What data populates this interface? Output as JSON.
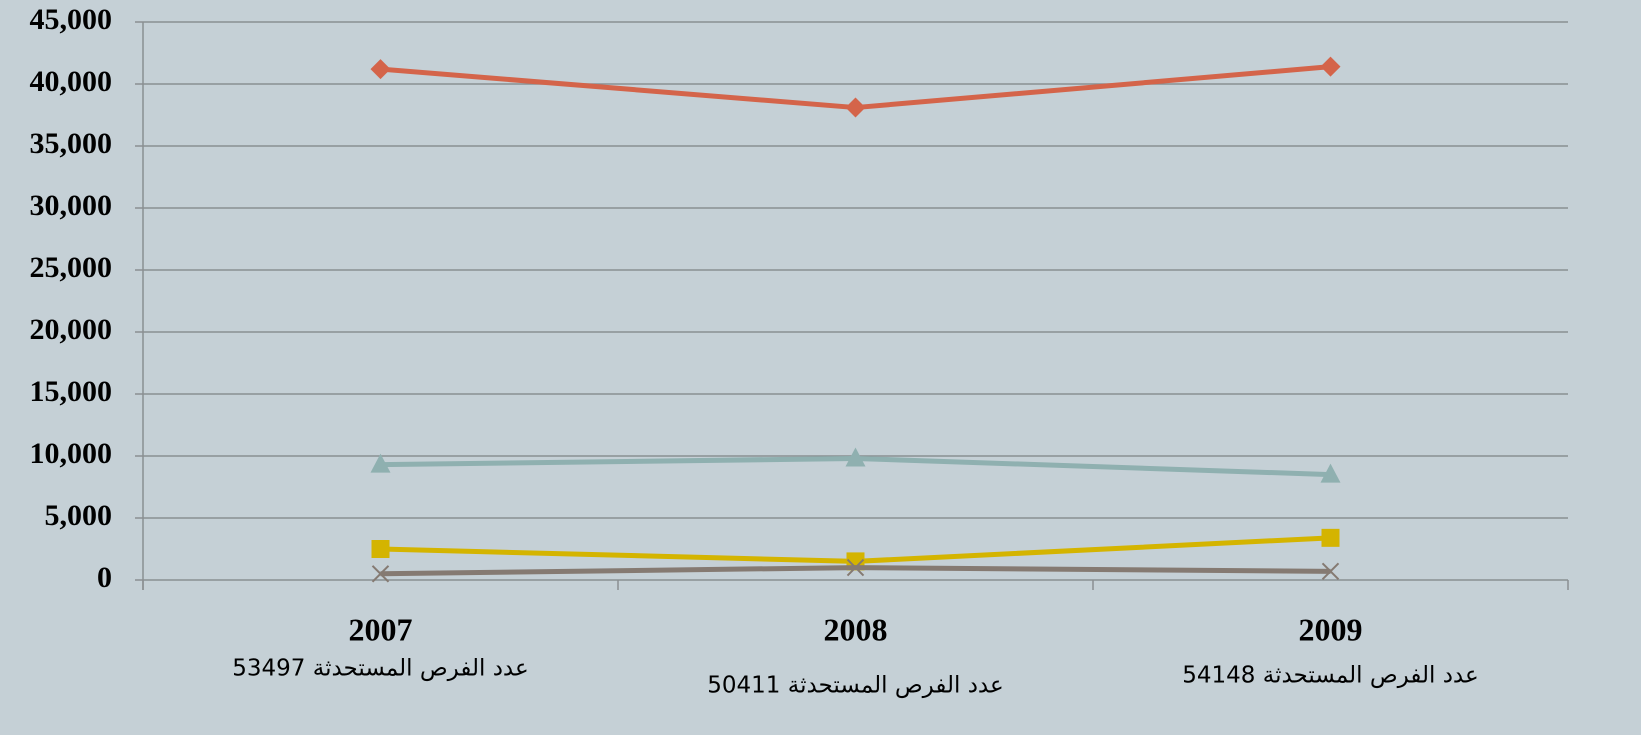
{
  "chart_data": {
    "type": "line",
    "categories": [
      "2007",
      "2008",
      "2009"
    ],
    "category_notes": [
      "عدد الفرص المستحدثة 53497",
      "عدد الفرص المستحدثة 50411",
      "عدد الفرص المستحدثة 54148"
    ],
    "series": [
      {
        "color": "#d4644a",
        "marker": "diamond",
        "values": [
          41200,
          38100,
          41400
        ]
      },
      {
        "color": "#8fb0b0",
        "marker": "triangle",
        "values": [
          9300,
          9800,
          8500
        ]
      },
      {
        "color": "#d4b400",
        "marker": "square",
        "values": [
          2500,
          1500,
          3400
        ]
      },
      {
        "color": "#857a72",
        "marker": "x",
        "values": [
          500,
          1000,
          700
        ]
      }
    ],
    "ylim": [
      0,
      45000
    ],
    "yticks": [
      0,
      {
        "value": 5000,
        "label": "5,000"
      },
      {
        "value": 10000,
        "label": "10,000"
      },
      {
        "value": 15000,
        "label": "15,000"
      },
      {
        "value": 20000,
        "label": "20,000"
      },
      {
        "value": 25000,
        "label": "25,000"
      },
      {
        "value": 30000,
        "label": "30,000"
      },
      {
        "value": 35000,
        "label": "35,000"
      },
      {
        "value": 40000,
        "label": "40,000"
      },
      {
        "value": 45000,
        "label": "45,000"
      }
    ],
    "grid": true
  }
}
